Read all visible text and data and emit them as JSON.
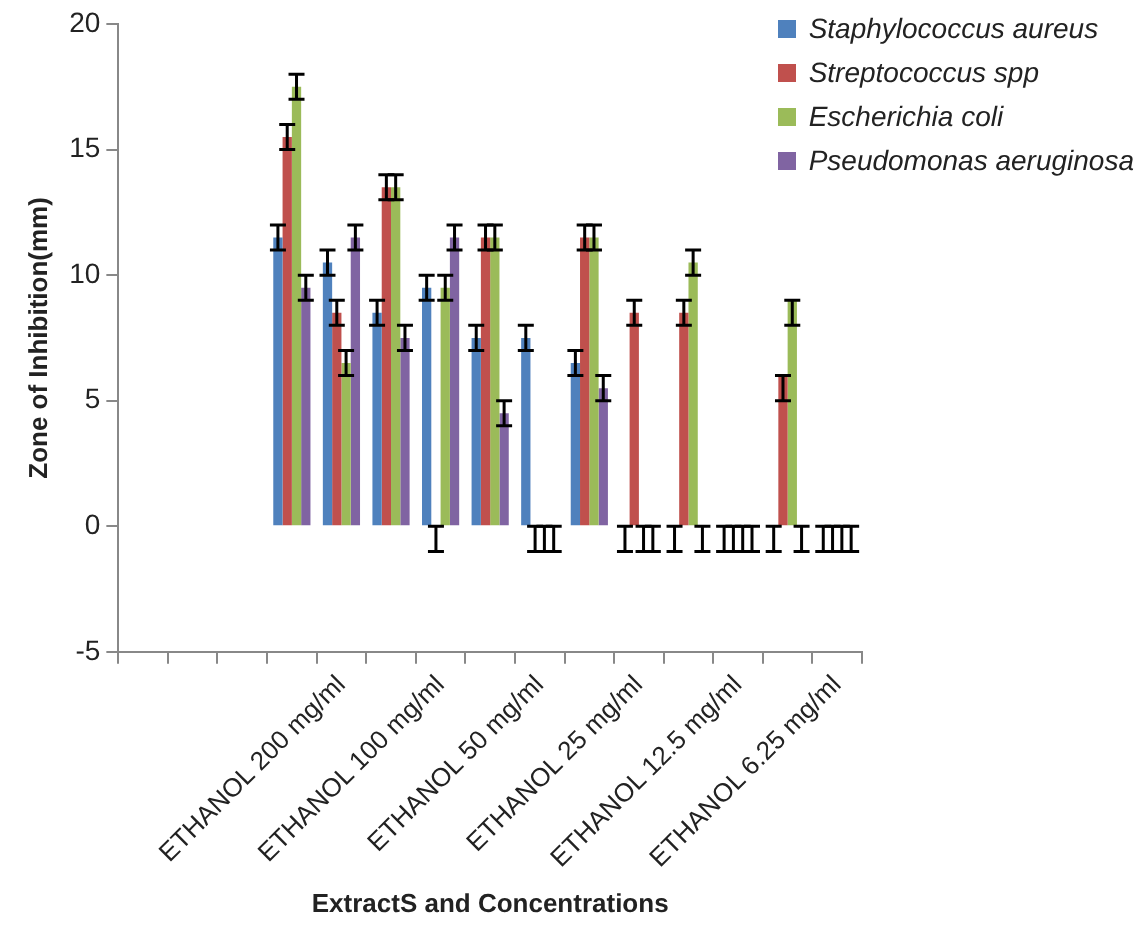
{
  "chart_data": {
    "type": "bar",
    "xlabel": "ExtractS and Concentrations",
    "ylabel": "Zone of Inhibition(mm)",
    "categories": [
      null,
      null,
      null,
      null,
      "ETHANOL 200 mg/ml",
      null,
      "ETHANOL 100 mg/ml",
      null,
      "ETHANOL 50 mg/ml",
      null,
      "ETHANOL 25 mg/ml",
      null,
      "ETHANOL 12.5 mg/ml",
      null,
      "ETHANOL 6.25 mg/ml"
    ],
    "series": [
      {
        "name": "Staphylococcus aureus",
        "color": "#4f81bd",
        "values": [
          null,
          null,
          null,
          11.5,
          10.5,
          8.5,
          9.5,
          7.5,
          7.5,
          6.5,
          0,
          0,
          0,
          0,
          0
        ],
        "errors": [
          null,
          null,
          null,
          0.5,
          0.5,
          0.5,
          0.5,
          0.5,
          0.5,
          0.5,
          [
            -1,
            0
          ],
          [
            -1,
            0
          ],
          [
            -1,
            0
          ],
          [
            -1,
            0
          ],
          [
            -1,
            0
          ]
        ]
      },
      {
        "name": "Streptococcus spp",
        "color": "#c0504d",
        "values": [
          null,
          null,
          null,
          15.5,
          8.5,
          13.5,
          0,
          11.5,
          0,
          11.5,
          8.5,
          8.5,
          0,
          6,
          0
        ],
        "errors": [
          null,
          null,
          null,
          0.5,
          0.5,
          0.5,
          [
            -1,
            0
          ],
          0.5,
          [
            -1,
            0
          ],
          0.5,
          0.5,
          0.5,
          [
            -1,
            0
          ],
          [
            5,
            6
          ],
          [
            -1,
            0
          ]
        ]
      },
      {
        "name": "Escherichia coli",
        "color": "#9bbb59",
        "values": [
          null,
          null,
          null,
          17.5,
          6.5,
          13.5,
          9.5,
          11.5,
          0,
          11.5,
          0,
          10.5,
          0,
          9,
          0
        ],
        "errors": [
          null,
          null,
          null,
          0.5,
          0.5,
          0.5,
          0.5,
          0.5,
          [
            -1,
            0
          ],
          0.5,
          [
            -1,
            0
          ],
          0.5,
          [
            -1,
            0
          ],
          [
            8,
            9
          ],
          [
            -1,
            0
          ]
        ]
      },
      {
        "name": "Pseudomonas aeruginosa",
        "color": "#8064a2",
        "values": [
          null,
          null,
          null,
          9.5,
          11.5,
          7.5,
          11.5,
          4.5,
          0,
          5.5,
          0,
          0,
          0,
          0,
          0
        ],
        "errors": [
          null,
          null,
          null,
          0.5,
          0.5,
          0.5,
          0.5,
          0.5,
          [
            -1,
            0
          ],
          0.5,
          [
            -1,
            0
          ],
          [
            -1,
            0
          ],
          [
            -1,
            0
          ],
          [
            -1,
            0
          ],
          [
            -1,
            0
          ]
        ]
      }
    ],
    "ylim": [
      -5,
      20
    ],
    "yticks": [
      -5,
      0,
      5,
      10,
      15,
      20
    ],
    "grid": false,
    "legend": "top right"
  }
}
